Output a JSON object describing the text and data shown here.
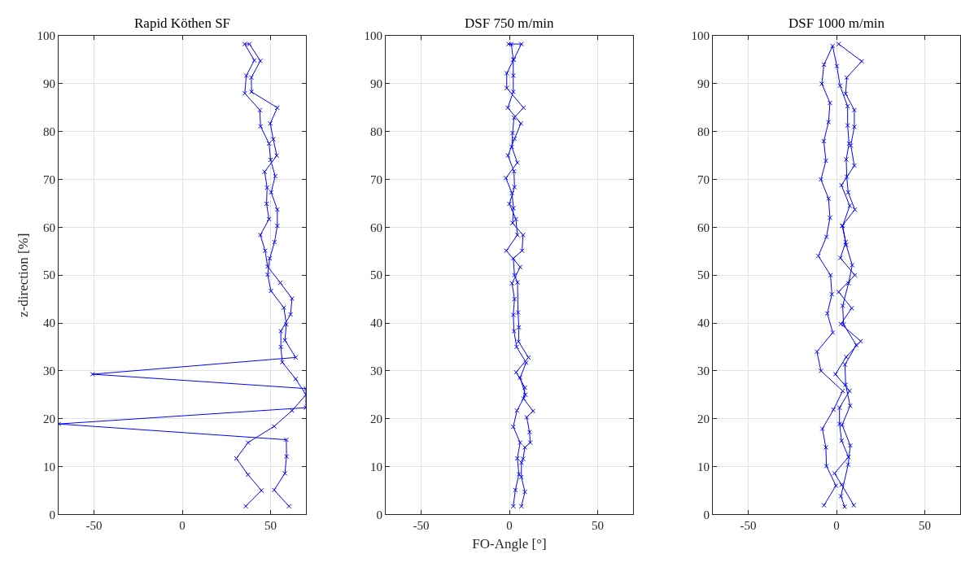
{
  "chart_data": [
    {
      "type": "line",
      "title": "Rapid Köthen SF",
      "ylabel": "z-direction [%]",
      "xlim": [
        -70,
        70
      ],
      "xticks": [
        -50,
        0,
        50
      ],
      "ylim": [
        0,
        100
      ],
      "yticks": [
        0,
        10,
        20,
        30,
        40,
        50,
        60,
        70,
        80,
        90,
        100
      ],
      "grid": true,
      "marker": "cross",
      "line_style": "solid",
      "series": [
        {
          "color": "#0000ff",
          "x": [
            35.9,
            44.8,
            37.2,
            30.6,
            37.2,
            52.0,
            62.1,
            70,
            64.2,
            56.6,
            55.8,
            55.8,
            61.3,
            62.1,
            55.5,
            48.3,
            46.9,
            44.2,
            49.1,
            47.7,
            48.0,
            46.6,
            53.5,
            51.5,
            49.8,
            53.8,
            39.2,
            39.1,
            44.2,
            38.0,
            35.3,
            40.8,
            36.2,
            35.4,
            43.9,
            44.3,
            49.1,
            50.0,
            52.6,
            50.3,
            53.8,
            53.8,
            52.2,
            49.5,
            48.3,
            50.2,
            57.5,
            58.9,
            58.1,
            64.2,
            -50.8,
            70,
            70,
            -70,
            58.9,
            59.0,
            58.1,
            52.0,
            60.4
          ],
          "values": [
            1.7,
            5.0,
            8.3,
            11.7,
            15.0,
            18.4,
            21.7,
            25.0,
            28.3,
            31.8,
            35.0,
            38.3,
            41.8,
            45.1,
            48.4,
            51.8,
            55.1,
            58.4,
            61.7,
            64.9,
            68.3,
            71.6,
            75.0,
            78.4,
            81.7,
            85.0,
            88.3,
            91.3,
            94.8,
            98.3,
            98.3,
            94.9,
            91.7,
            88.0,
            84.5,
            81.1,
            77.5,
            74.1,
            70.7,
            67.3,
            63.7,
            60.3,
            56.9,
            53.5,
            50.1,
            46.7,
            43.2,
            39.7,
            36.4,
            32.8,
            29.3,
            26.3,
            22.3,
            18.9,
            15.6,
            12.1,
            8.6,
            5.1,
            1.7
          ]
        }
      ]
    },
    {
      "type": "line",
      "title": "DSF 750 m/min",
      "xlabel": "FO-Angle [°]",
      "xlim": [
        -70,
        70
      ],
      "xticks": [
        -50,
        0,
        50
      ],
      "ylim": [
        0,
        100
      ],
      "yticks": [
        0,
        10,
        20,
        30,
        40,
        50,
        60,
        70,
        80,
        90,
        100
      ],
      "grid": true,
      "marker": "cross",
      "line_style": "solid",
      "series": [
        {
          "color": "#0000ff",
          "x": [
            2.2,
            3.4,
            5.4,
            4.5,
            6.1,
            2.2,
            4.3,
            9.1,
            6.1,
            9.5,
            4.1,
            2.6,
            2.2,
            2.9,
            1.5,
            6.1,
            -1.7,
            4.5,
            3.7,
            0,
            2.9,
            2.6,
            -0.8,
            2.9,
            6.5,
            -0.9,
            2.2,
            2.2,
            2.2,
            1.1,
            -0.5,
            6.8,
            2.4,
            -1.5,
            -1.5,
            8.0,
            2.6,
            1.8,
            1.4,
            4.5,
            -2.0,
            1.5,
            2.3,
            1.8,
            7.7,
            7.2,
            2.2,
            2.9,
            4.6,
            4.9,
            5.4,
            5.2,
            10.8,
            3.8,
            8.8,
            8.0,
            13.4,
            9.8,
            11.4,
            11.8,
            8.8,
            7.7,
            6.8,
            6.8,
            8.8,
            6.8
          ],
          "values": [
            1.7,
            5.1,
            8.4,
            11.7,
            15.0,
            18.3,
            21.7,
            25.0,
            28.6,
            31.7,
            35.0,
            38.3,
            41.7,
            45.0,
            48.3,
            51.7,
            55.1,
            58.4,
            61.7,
            64.9,
            68.4,
            71.7,
            75.0,
            78.5,
            81.7,
            85.0,
            88.3,
            91.7,
            95.1,
            98.3,
            98.3,
            98.3,
            95.0,
            92.2,
            89.1,
            85.0,
            82.9,
            79.7,
            76.8,
            73.5,
            70.3,
            67.1,
            64.0,
            60.9,
            58.4,
            55.1,
            53.5,
            50.0,
            48.5,
            42.2,
            39.1,
            36.1,
            32.8,
            29.7,
            26.5,
            24.2,
            21.6,
            20.3,
            17.2,
            15.0,
            14.0,
            11.6,
            10.8,
            7.8,
            4.7,
            1.7
          ]
        }
      ]
    },
    {
      "type": "line",
      "title": "DSF 1000 m/min",
      "xlim": [
        -70,
        70
      ],
      "xticks": [
        -50,
        0,
        50
      ],
      "ylim": [
        0,
        100
      ],
      "yticks": [
        0,
        10,
        20,
        30,
        40,
        50,
        60,
        70,
        80,
        90,
        100
      ],
      "grid": true,
      "marker": "cross",
      "line_style": "solid",
      "series": [
        {
          "color": "#0000ff",
          "x": [
            4.6,
            2.5,
            6.6,
            7.8,
            3.2,
            7.7,
            5.2,
            4.8,
            11.2,
            4.0,
            3.5,
            6.8,
            8.9,
            5.5,
            3.5,
            7.5,
            2.8,
            10.1,
            8.1,
            10.1,
            10.1,
            5.2,
            5.8,
            14.3,
            1.2,
            null,
            -7.1,
            -0.3,
            -5.7,
            -6.0,
            -8.0,
            -1.7,
            3.5,
            -8.8,
            -11.1,
            -2.1,
            -5.2,
            -2.6,
            -3.4,
            -10.3,
            -5.7,
            -3.7,
            -4.5,
            -8.8,
            -6.0,
            -7.2,
            -4.5,
            -3.7,
            -8.3,
            -7.1,
            -2.2,
            0.2,
            2.0,
            6.3,
            6.3,
            7.1,
            5.5,
            5.8,
            6.6,
            10.4,
            3.2,
            5.2,
            2.2,
            10.4,
            1.2,
            8.6,
            2.5,
            13.7,
            5.5,
            -0.6,
            7.4,
            1.7,
            1.7,
            2.9,
            6.8,
            -1.1,
            2.9,
            9.8
          ],
          "values": [
            1.6,
            3.8,
            10.4,
            14.4,
            18.7,
            22.7,
            27.1,
            31.3,
            35.4,
            39.7,
            43.6,
            48.3,
            52.1,
            56.3,
            60.3,
            64.5,
            68.8,
            72.9,
            77.1,
            81.0,
            84.5,
            87.9,
            91.3,
            94.7,
            98.3,
            null,
            1.9,
            6.0,
            10.1,
            14.0,
            17.9,
            21.9,
            25.8,
            30.0,
            34.0,
            38.0,
            42.0,
            46.0,
            50.0,
            54.0,
            58.0,
            62.0,
            66.0,
            70.0,
            73.9,
            78.0,
            82.0,
            86.0,
            90.0,
            94.0,
            97.9,
            93.7,
            89.6,
            85.3,
            81.3,
            77.5,
            74.2,
            70.6,
            67.3,
            63.7,
            60.3,
            56.9,
            53.6,
            50.0,
            46.5,
            43.1,
            39.8,
            36.2,
            32.9,
            29.3,
            25.8,
            22.3,
            18.9,
            15.4,
            12.0,
            8.6,
            6.2,
            1.9
          ]
        }
      ]
    }
  ]
}
